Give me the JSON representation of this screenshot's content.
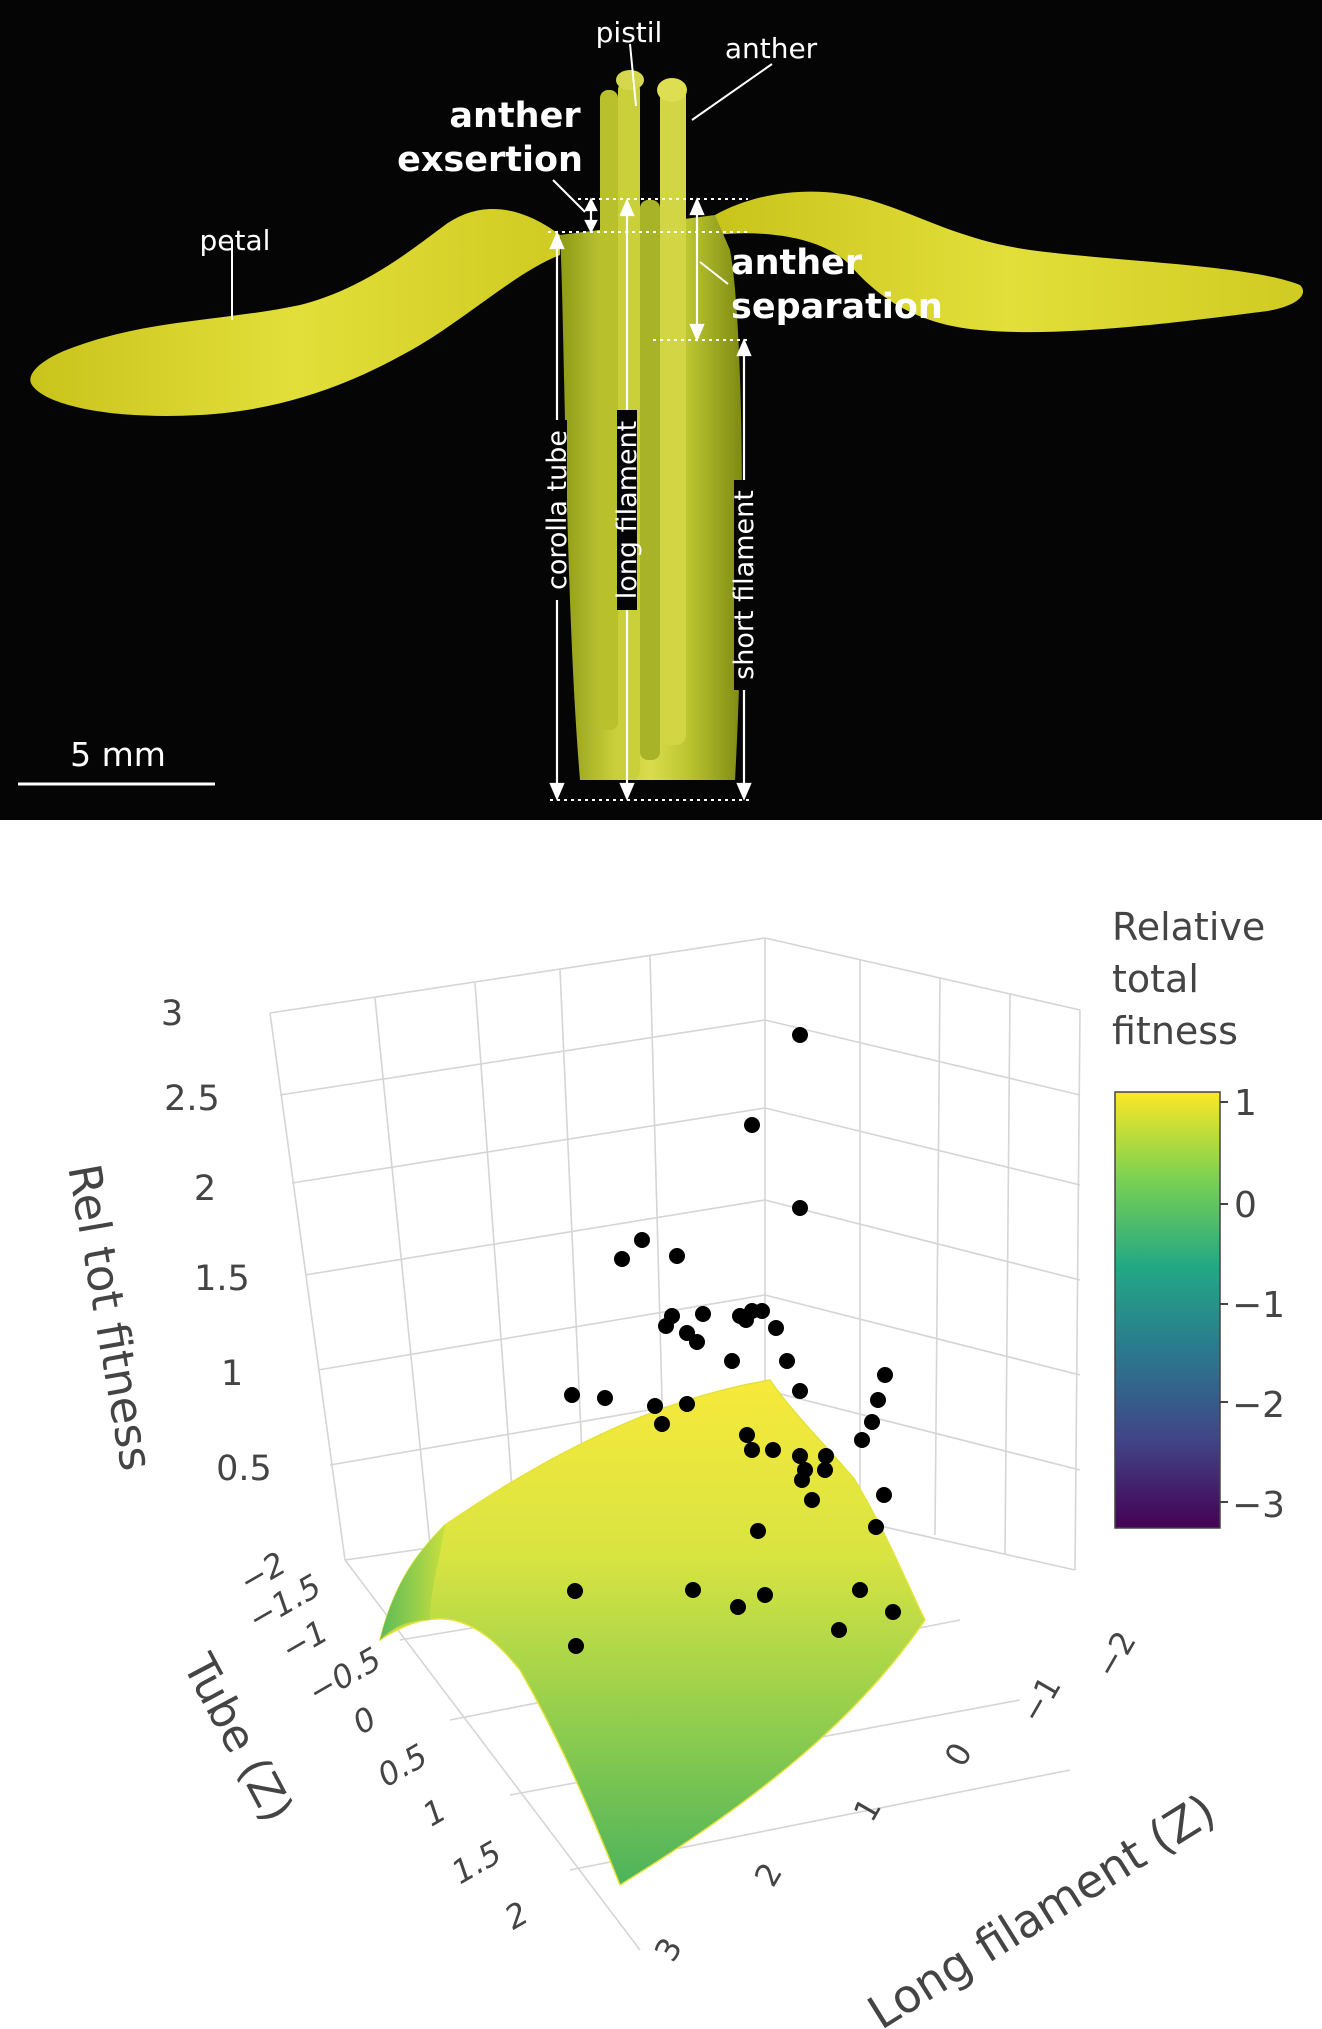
{
  "photo": {
    "labels": {
      "pistil": "pistil",
      "anther": "anther",
      "anther_exsertion_line1": "anther",
      "anther_exsertion_line2": "exsertion",
      "petal": "petal",
      "anther_separation_line1": "anther",
      "anther_separation_line2": "separation",
      "corolla_tube": "corolla tube",
      "long_filament": "long filament",
      "short_filament": "short filament"
    },
    "scale_bar_label": "5 mm",
    "colors": {
      "petal": "#d8d42a",
      "background": "#050505",
      "annotation": "#ffffff"
    }
  },
  "chart_data": {
    "type": "surface",
    "axes": {
      "z": {
        "label": "Rel tot fitness",
        "ticks": [
          "0.5",
          "1",
          "1.5",
          "2",
          "2.5",
          "3"
        ],
        "range": [
          0,
          3
        ]
      },
      "tube": {
        "label": "Tube (Z)",
        "ticks": [
          "−2",
          "−1.5",
          "−1",
          "−0.5",
          "0",
          "0.5",
          "1",
          "1.5",
          "2"
        ],
        "range": [
          -2,
          2
        ]
      },
      "long_filament": {
        "label": "Long filament (Z)",
        "ticks": [
          "3",
          "2",
          "1",
          "0",
          "−1",
          "−2"
        ],
        "range": [
          -2,
          3
        ]
      }
    },
    "colorbar": {
      "title_lines": [
        "Relative",
        "total",
        "fitness"
      ],
      "ticks": [
        "1",
        "0",
        "−1",
        "−2",
        "−3"
      ],
      "range": [
        -3,
        1
      ],
      "colors": [
        "#fde725",
        "#7ad151",
        "#22a884",
        "#2a788e",
        "#414487",
        "#440154"
      ]
    }
  }
}
